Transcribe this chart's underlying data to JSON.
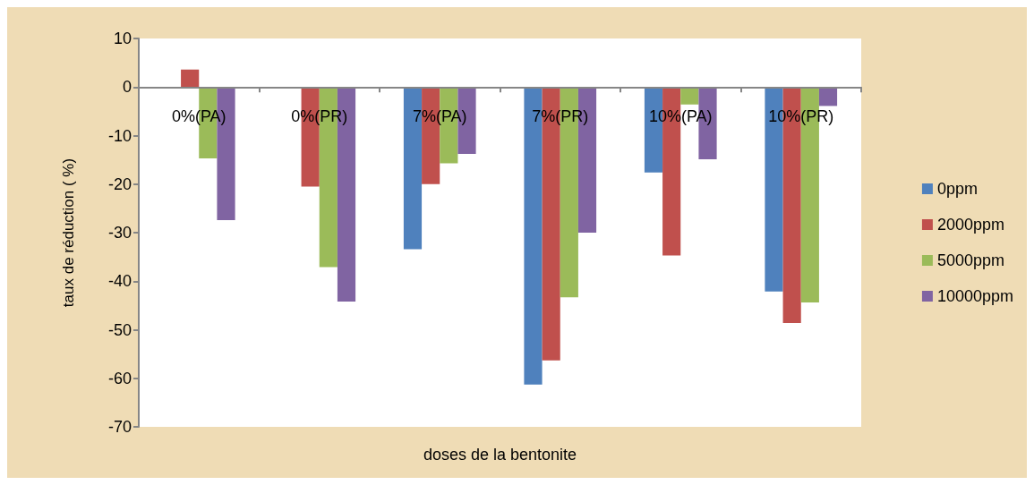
{
  "chart_data": {
    "type": "bar",
    "xlabel": "doses de la bentonite",
    "ylabel": "taux de réduction ( %)",
    "categories": [
      "0%(PA)",
      "0%(PR)",
      "7%(PA)",
      "7%(PR)",
      "10%(PA)",
      "10%(PR)"
    ],
    "series": [
      {
        "name": "0ppm",
        "color": "#4f81bd",
        "values": [
          0,
          0,
          -33.4,
          -61.3,
          -17.6,
          -42.1
        ]
      },
      {
        "name": "2000ppm",
        "color": "#c0504d",
        "values": [
          3.6,
          -20.5,
          -20.0,
          -56.3,
          -34.7,
          -48.6
        ]
      },
      {
        "name": "5000ppm",
        "color": "#9bbb59",
        "values": [
          -14.7,
          -37.1,
          -15.7,
          -43.3,
          -3.6,
          -44.4
        ]
      },
      {
        "name": "10000ppm",
        "color": "#8064a2",
        "values": [
          -27.4,
          -44.2,
          -13.8,
          -30.0,
          -14.9,
          -3.9
        ]
      }
    ],
    "ylim": [
      -70,
      10
    ],
    "yticks": [
      -70,
      -60,
      -50,
      -40,
      -30,
      -20,
      -10,
      0,
      10
    ],
    "grid": false,
    "legend": "right"
  }
}
